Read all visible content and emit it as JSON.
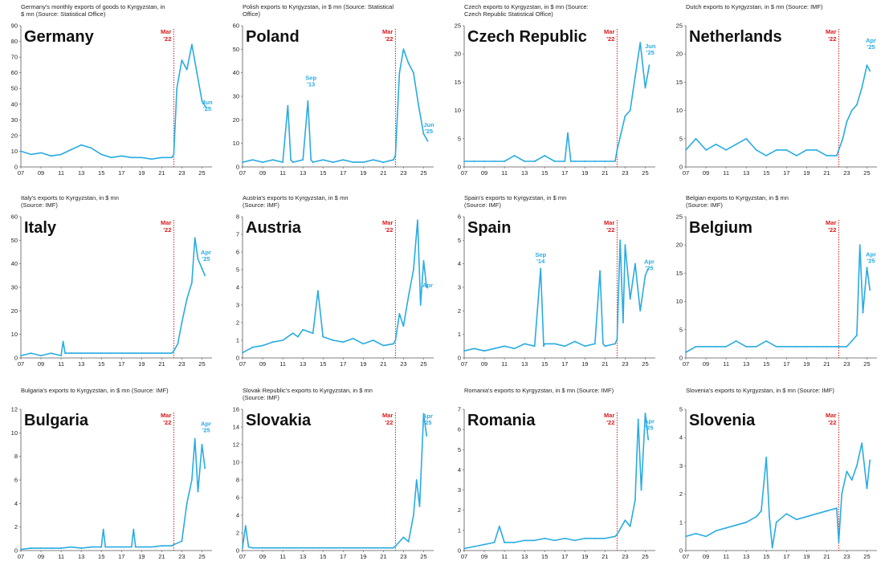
{
  "colors": {
    "line": "#29abe2",
    "marker": "#d7191c",
    "text": "#222222",
    "axis": "#555555"
  },
  "chart_data": [
    {
      "type": "line",
      "country": "Germany",
      "title": "Germany's monthly exports of goods to Kyrgyzstan, in $ mn (Source: Statistical Office)",
      "title_lines": [
        "Germany's monthly exports of goods to Kyrgyzstan, in",
        "$ mn (Source: Statistical Office)"
      ],
      "ylim": [
        0,
        90
      ],
      "yticks": [
        0,
        10,
        20,
        30,
        40,
        50,
        60,
        70,
        80,
        90
      ],
      "xticks": [
        "07",
        "09",
        "11",
        "13",
        "15",
        "17",
        "19",
        "21",
        "23",
        "25"
      ],
      "marker": {
        "label": [
          "Mar",
          "'22"
        ],
        "x": 22.2
      },
      "annotations": [
        {
          "text": [
            "Jun",
            "'25"
          ],
          "x": 25.6,
          "y": 40
        }
      ],
      "x": [
        7,
        8,
        9,
        10,
        11,
        12,
        13,
        14,
        15,
        16,
        17,
        18,
        19,
        20,
        21,
        22,
        22.2,
        22.5,
        23,
        23.5,
        24,
        24.5,
        25,
        25.4
      ],
      "y": [
        10,
        8,
        9,
        7,
        8,
        11,
        14,
        12,
        8,
        6,
        7,
        6,
        6,
        5,
        6,
        6,
        8,
        50,
        68,
        62,
        78,
        60,
        42,
        38
      ]
    },
    {
      "type": "line",
      "country": "Poland",
      "title": "Polish exports to Kyrgyzstan, in $ mn (Source: Statistical Office)",
      "title_lines": [
        "Polish exports to Kyrgyzstan, in $ mn (Source: Statistical",
        "Office)"
      ],
      "ylim": [
        0,
        60
      ],
      "yticks": [
        0,
        10,
        20,
        30,
        40,
        50,
        60
      ],
      "xticks": [
        "07",
        "09",
        "11",
        "13",
        "15",
        "17",
        "19",
        "21",
        "23",
        "25"
      ],
      "marker": {
        "label": [
          "Mar",
          "'22"
        ],
        "x": 22.2
      },
      "annotations": [
        {
          "text": [
            "Sep",
            "'13"
          ],
          "x": 13.8,
          "y": 37
        },
        {
          "text": [
            "Jun",
            "'25"
          ],
          "x": 25.6,
          "y": 17
        }
      ],
      "x": [
        7,
        8,
        9,
        10,
        11,
        11.5,
        11.8,
        12,
        13,
        13.5,
        13.8,
        14,
        15,
        16,
        17,
        18,
        19,
        20,
        21,
        22,
        22.2,
        22.6,
        23,
        23.5,
        24,
        24.5,
        25,
        25.4
      ],
      "y": [
        2,
        3,
        2,
        3,
        2,
        26,
        3,
        2,
        3,
        28,
        3,
        2,
        3,
        2,
        3,
        2,
        2,
        3,
        2,
        3,
        5,
        40,
        50,
        44,
        40,
        26,
        14,
        11
      ]
    },
    {
      "type": "line",
      "country": "Czech Republic",
      "title": "Czech exports to Kyrgyzstan, in $ mn (Source: Czech Republic Statistical Office)",
      "title_lines": [
        "Czech exports to Kyrgyzstan, in $ mn (Source:",
        "Czech Republic Statistical Office)"
      ],
      "ylim": [
        0,
        25
      ],
      "yticks": [
        0,
        5,
        10,
        15,
        20,
        25
      ],
      "xticks": [
        "07",
        "09",
        "11",
        "13",
        "15",
        "17",
        "19",
        "21",
        "23",
        "25"
      ],
      "marker": {
        "label": [
          "Mar",
          "'22"
        ],
        "x": 22.2
      },
      "annotations": [
        {
          "text": [
            "Jun",
            "'25"
          ],
          "x": 25.5,
          "y": 21
        }
      ],
      "x": [
        7,
        8,
        9,
        10,
        11,
        12,
        13,
        14,
        15,
        16,
        17,
        17.3,
        17.6,
        18,
        19,
        20,
        21,
        22,
        22.2,
        22.6,
        23,
        23.5,
        24,
        24.5,
        25,
        25.4
      ],
      "y": [
        1,
        1,
        1,
        1,
        1,
        2,
        1,
        1,
        2,
        1,
        1,
        6,
        1,
        1,
        1,
        1,
        1,
        1,
        3,
        6,
        9,
        10,
        16,
        22,
        14,
        18
      ]
    },
    {
      "type": "line",
      "country": "Netherlands",
      "title": "Dutch exports to Kyrgyzstan, in $ mn (Source: IMF)",
      "title_lines": [
        "Dutch exports to Kyrgyzstan, in $ mn (Source: IMF)"
      ],
      "ylim": [
        0,
        25
      ],
      "yticks": [
        0,
        5,
        10,
        15,
        20,
        25
      ],
      "xticks": [
        "07",
        "09",
        "11",
        "13",
        "15",
        "17",
        "19",
        "21",
        "23",
        "25"
      ],
      "marker": {
        "label": [
          "Mar",
          "'22"
        ],
        "x": 22.2
      },
      "annotations": [
        {
          "text": [
            "Apr",
            "'25"
          ],
          "x": 25.4,
          "y": 22
        }
      ],
      "x": [
        7,
        8,
        9,
        10,
        11,
        12,
        13,
        14,
        15,
        16,
        17,
        18,
        19,
        20,
        21,
        22,
        22.2,
        22.6,
        23,
        23.5,
        24,
        24.5,
        25,
        25.3
      ],
      "y": [
        3,
        5,
        3,
        4,
        3,
        4,
        5,
        3,
        2,
        3,
        3,
        2,
        3,
        3,
        2,
        2,
        3,
        5,
        8,
        10,
        11,
        14,
        18,
        17
      ]
    },
    {
      "type": "line",
      "country": "Italy",
      "title": "Italy's exports to Kyrgyzstan, in $ mn (Source: IMF)",
      "title_lines": [
        "Italy's exports to Kyrgyzstan, in $ mn",
        "(Source: IMF)"
      ],
      "ylim": [
        0,
        60
      ],
      "yticks": [
        0,
        10,
        20,
        30,
        40,
        50,
        60
      ],
      "xticks": [
        "07",
        "09",
        "11",
        "13",
        "15",
        "17",
        "19",
        "21",
        "23",
        "25"
      ],
      "marker": {
        "label": [
          "Mar",
          "'22"
        ],
        "x": 22.2
      },
      "annotations": [
        {
          "text": [
            "Apr",
            "'25"
          ],
          "x": 25.4,
          "y": 44
        }
      ],
      "x": [
        7,
        8,
        9,
        10,
        11,
        11.2,
        11.4,
        12,
        13,
        14,
        15,
        16,
        17,
        18,
        19,
        20,
        21,
        22,
        22.2,
        22.6,
        23,
        23.5,
        24,
        24.3,
        24.6,
        25,
        25.3
      ],
      "y": [
        1,
        2,
        1,
        2,
        1,
        7,
        2,
        2,
        2,
        2,
        2,
        2,
        2,
        2,
        2,
        2,
        2,
        2,
        3,
        6,
        15,
        25,
        32,
        51,
        42,
        38,
        35
      ]
    },
    {
      "type": "line",
      "country": "Austria",
      "title": "Austria's exports to Kyrgyzstan, in $ mn (Source: IMF)",
      "title_lines": [
        "Austria's exports to Kyrgyzstan, in $ mn",
        "(Source: IMF)"
      ],
      "ylim": [
        0,
        8
      ],
      "yticks": [
        0,
        1,
        2,
        3,
        4,
        5,
        6,
        7,
        8
      ],
      "xticks": [
        "07",
        "09",
        "11",
        "13",
        "15",
        "17",
        "19",
        "21",
        "23",
        "25"
      ],
      "marker": {
        "label": [
          "Mar",
          "'22"
        ],
        "x": 22.2
      },
      "annotations": [
        {
          "text": [
            "Apr"
          ],
          "x": 25.4,
          "y": 4
        }
      ],
      "x": [
        7,
        8,
        9,
        10,
        11,
        12,
        12.5,
        13,
        14,
        14.5,
        15,
        16,
        17,
        18,
        19,
        20,
        21,
        22,
        22.2,
        22.6,
        23,
        23.5,
        24,
        24.4,
        24.7,
        25,
        25.3
      ],
      "y": [
        0.3,
        0.6,
        0.7,
        0.9,
        1.0,
        1.4,
        1.2,
        1.6,
        1.4,
        3.8,
        1.2,
        1.0,
        0.9,
        1.1,
        0.8,
        1.0,
        0.7,
        0.8,
        1.0,
        2.5,
        1.8,
        3.5,
        5.0,
        7.8,
        3.0,
        5.5,
        4.0
      ]
    },
    {
      "type": "line",
      "country": "Spain",
      "title": "Spain's exports to Kyrgyzstan, in $ mn (Source: IMF)",
      "title_lines": [
        "Spain's exports to Kyrgyzstan, in $ mn",
        "(Source: IMF)"
      ],
      "ylim": [
        0,
        6
      ],
      "yticks": [
        0,
        1,
        2,
        3,
        4,
        5,
        6
      ],
      "xticks": [
        "07",
        "09",
        "11",
        "13",
        "15",
        "17",
        "19",
        "21",
        "23",
        "25"
      ],
      "marker": {
        "label": [
          "Mar",
          "'22"
        ],
        "x": 22.2
      },
      "annotations": [
        {
          "text": [
            "Sep",
            "'14"
          ],
          "x": 14.6,
          "y": 4.3
        },
        {
          "text": [
            "Apr",
            "'25"
          ],
          "x": 25.4,
          "y": 4.0
        }
      ],
      "x": [
        7,
        8,
        9,
        10,
        11,
        12,
        13,
        14,
        14.6,
        14.9,
        15,
        16,
        17,
        18,
        19,
        20,
        20.5,
        20.8,
        21,
        22,
        22.2,
        22.5,
        22.8,
        23,
        23.5,
        24,
        24.5,
        25,
        25.3
      ],
      "y": [
        0.3,
        0.4,
        0.3,
        0.4,
        0.5,
        0.4,
        0.6,
        0.5,
        3.8,
        0.5,
        0.6,
        0.6,
        0.5,
        0.7,
        0.5,
        0.6,
        3.7,
        0.6,
        0.5,
        0.6,
        0.8,
        5.0,
        1.5,
        4.8,
        2.5,
        4.0,
        2.0,
        3.5,
        3.8
      ]
    },
    {
      "type": "line",
      "country": "Belgium",
      "title": "Belgian exports to Kyrgyzstan, in $ mn (Source: IMF)",
      "title_lines": [
        "Belgian exports to Kyrgyzstan, in $ mn",
        "(Source: IMF)"
      ],
      "ylim": [
        0,
        25
      ],
      "yticks": [
        0,
        5,
        10,
        15,
        20,
        25
      ],
      "xticks": [
        "07",
        "09",
        "11",
        "13",
        "15",
        "17",
        "19",
        "21",
        "23",
        "25"
      ],
      "marker": {
        "label": [
          "Mar",
          "'22"
        ],
        "x": 22.2
      },
      "annotations": [
        {
          "text": [
            "Apr",
            "'25"
          ],
          "x": 25.4,
          "y": 18
        }
      ],
      "x": [
        7,
        8,
        9,
        10,
        11,
        12,
        13,
        14,
        15,
        16,
        17,
        18,
        19,
        20,
        21,
        22,
        22.2,
        23,
        23.5,
        24,
        24.3,
        24.6,
        25,
        25.3
      ],
      "y": [
        1,
        2,
        2,
        2,
        2,
        3,
        2,
        2,
        3,
        2,
        2,
        2,
        2,
        2,
        2,
        2,
        2,
        2,
        3,
        4,
        20,
        8,
        16,
        12
      ]
    },
    {
      "type": "line",
      "country": "Bulgaria",
      "title": "Bulgaria's exports to Kyrgyzstan, in $ mn (Source: IMF)",
      "title_lines": [
        "Bulgaria's exports to Kyrgyzstan, in $ mn (Source: IMF)"
      ],
      "ylim": [
        0,
        12
      ],
      "yticks": [
        0,
        2,
        4,
        6,
        8,
        10,
        12
      ],
      "xticks": [
        "07",
        "09",
        "11",
        "13",
        "15",
        "17",
        "19",
        "21",
        "23",
        "25"
      ],
      "marker": {
        "label": [
          "Mar",
          "'22"
        ],
        "x": 22.2
      },
      "annotations": [
        {
          "text": [
            "Apr",
            "'25"
          ],
          "x": 25.4,
          "y": 10.6
        }
      ],
      "x": [
        7,
        8,
        9,
        10,
        11,
        12,
        13,
        14,
        15,
        15.2,
        15.4,
        16,
        17,
        18,
        18.2,
        18.4,
        19,
        20,
        21,
        22,
        22.2,
        23,
        23.5,
        24,
        24.3,
        24.6,
        25,
        25.3
      ],
      "y": [
        0.1,
        0.2,
        0.2,
        0.2,
        0.2,
        0.3,
        0.2,
        0.3,
        0.3,
        1.8,
        0.3,
        0.3,
        0.3,
        0.3,
        1.8,
        0.3,
        0.3,
        0.3,
        0.4,
        0.4,
        0.5,
        0.8,
        4.0,
        6.0,
        9.5,
        5.0,
        9.0,
        7.0
      ]
    },
    {
      "type": "line",
      "country": "Slovakia",
      "title": "Slovak Republic's exports to Kyrgyzstan, in $ mn (Source: IMF)",
      "title_lines": [
        "Slovak Republic's exports to Kyrgyzstan, in $ mn",
        "(Source: IMF)"
      ],
      "ylim": [
        0,
        16
      ],
      "yticks": [
        0,
        2,
        4,
        6,
        8,
        10,
        12,
        14,
        16
      ],
      "xticks": [
        "07",
        "09",
        "11",
        "13",
        "15",
        "17",
        "19",
        "21",
        "23",
        "25"
      ],
      "marker": {
        "label": [
          "Mar",
          "'22"
        ],
        "x": 22.2
      },
      "annotations": [
        {
          "text": [
            "Apr",
            "'25"
          ],
          "x": 25.4,
          "y": 15
        }
      ],
      "x": [
        7,
        7.3,
        7.6,
        8,
        9,
        10,
        11,
        12,
        13,
        14,
        15,
        16,
        17,
        18,
        19,
        20,
        21,
        22,
        22.2,
        23,
        23.5,
        24,
        24.3,
        24.6,
        25,
        25.3
      ],
      "y": [
        0.3,
        2.8,
        0.4,
        0.3,
        0.3,
        0.3,
        0.3,
        0.3,
        0.3,
        0.3,
        0.3,
        0.3,
        0.3,
        0.3,
        0.3,
        0.3,
        0.3,
        0.3,
        0.5,
        1.5,
        1.0,
        4.0,
        8.0,
        5.0,
        15.5,
        13.0
      ]
    },
    {
      "type": "line",
      "country": "Romania",
      "title": "Romania's exports to Kyrgyzstan, in $ mn (Source: IMF)",
      "title_lines": [
        "Romania's exports to Kyrgyzstan, in $ mn (Source: IMF)"
      ],
      "ylim": [
        0,
        7
      ],
      "yticks": [
        0,
        1,
        2,
        3,
        4,
        5,
        6,
        7
      ],
      "xticks": [
        "07",
        "09",
        "11",
        "13",
        "15",
        "17",
        "19",
        "21",
        "23",
        "25"
      ],
      "marker": {
        "label": [
          "Mar",
          "'22"
        ],
        "x": 22.2
      },
      "annotations": [
        {
          "text": [
            "Apr",
            "'25"
          ],
          "x": 25.4,
          "y": 6.3
        }
      ],
      "x": [
        7,
        8,
        9,
        10,
        10.5,
        11,
        12,
        13,
        14,
        15,
        16,
        17,
        18,
        19,
        20,
        21,
        22,
        22.2,
        23,
        23.5,
        24,
        24.3,
        24.6,
        25,
        25.3
      ],
      "y": [
        0.1,
        0.2,
        0.3,
        0.4,
        1.2,
        0.4,
        0.4,
        0.5,
        0.5,
        0.6,
        0.5,
        0.6,
        0.5,
        0.6,
        0.6,
        0.6,
        0.7,
        0.8,
        1.5,
        1.2,
        2.5,
        6.5,
        3.0,
        6.8,
        5.5
      ]
    },
    {
      "type": "line",
      "country": "Slovenia",
      "title": "Slovenia's exports to Kyrgyzstan, in $ mn (Source: IMF)",
      "title_lines": [
        "Slovenia's exports to Kyrgyzstan, in $ mn (Source: IMF)"
      ],
      "ylim": [
        0,
        5
      ],
      "yticks": [
        0,
        1,
        2,
        3,
        4,
        5
      ],
      "xticks": [
        "07",
        "09",
        "11",
        "13",
        "15",
        "17",
        "19",
        "21",
        "23",
        "25"
      ],
      "marker": {
        "label": [
          "Mar",
          "'22"
        ],
        "x": 22.2
      },
      "annotations": [],
      "x": [
        7,
        8,
        9,
        10,
        11,
        12,
        13,
        14,
        14.5,
        15,
        15.3,
        15.6,
        16,
        17,
        18,
        19,
        20,
        21,
        22,
        22.2,
        22.5,
        23,
        23.5,
        24,
        24.5,
        25,
        25.3
      ],
      "y": [
        0.5,
        0.6,
        0.5,
        0.7,
        0.8,
        0.9,
        1.0,
        1.2,
        1.4,
        3.3,
        1.2,
        0.1,
        1.0,
        1.3,
        1.1,
        1.2,
        1.3,
        1.4,
        1.5,
        0.3,
        2.0,
        2.8,
        2.5,
        3.0,
        3.8,
        2.2,
        3.2
      ]
    }
  ]
}
